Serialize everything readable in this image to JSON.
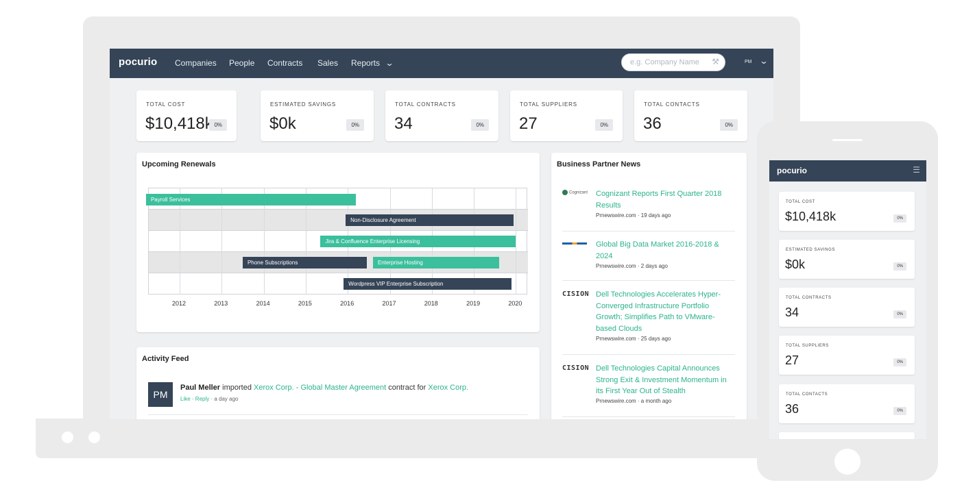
{
  "brand": "pocurio",
  "nav": {
    "items": [
      "Companies",
      "People",
      "Contracts",
      "Sales",
      "Reports"
    ],
    "search_placeholder": "e.g. Company Name",
    "user_initials": "PM"
  },
  "stats": [
    {
      "label": "TOTAL COST",
      "value": "$10,418k",
      "pct": "0%"
    },
    {
      "label": "ESTIMATED SAVINGS",
      "value": "$0k",
      "pct": "0%"
    },
    {
      "label": "TOTAL CONTRACTS",
      "value": "34",
      "pct": "0%"
    },
    {
      "label": "TOTAL SUPPLIERS",
      "value": "27",
      "pct": "0%"
    },
    {
      "label": "TOTAL CONTACTS",
      "value": "36",
      "pct": "0%"
    }
  ],
  "renewals": {
    "title": "Upcoming Renewals",
    "years": [
      "2012",
      "2013",
      "2014",
      "2015",
      "2016",
      "2017",
      "2018",
      "2019",
      "2020"
    ],
    "bars": [
      {
        "label": "Payroll Services",
        "row": 0,
        "start": 2011.2,
        "end": 2016.2,
        "color": "green"
      },
      {
        "label": "Non-Disclosure Agreement",
        "row": 1,
        "start": 2015.95,
        "end": 2019.95,
        "color": "dark"
      },
      {
        "label": "Jira & Confluence Enterprise Licensing",
        "row": 2,
        "start": 2015.35,
        "end": 2020.0,
        "color": "green"
      },
      {
        "label": "Phone Subscriptions",
        "row": 3,
        "start": 2013.5,
        "end": 2016.45,
        "color": "dark"
      },
      {
        "label": "Enterprise Hosting",
        "row": 3,
        "start": 2016.6,
        "end": 2019.6,
        "color": "green"
      },
      {
        "label": "Wordpress VIP Enterprise Subscription",
        "row": 4,
        "start": 2015.9,
        "end": 2019.9,
        "color": "dark"
      }
    ]
  },
  "activity": {
    "title": "Activity Feed",
    "avatar": "PM",
    "user": "Paul Meller",
    "action": "imported",
    "contract_link": "Xerox Corp. - Global Master Agreement",
    "middle": "contract for",
    "company_link": "Xerox Corp.",
    "like": "Like",
    "reply": "Reply",
    "time": "a day ago"
  },
  "news": {
    "title": "Business Partner News",
    "items": [
      {
        "logo": "Cognizant",
        "headline": "Cognizant Reports First Quarter 2018 Results",
        "source": "Prnewswire.com · 19 days ago"
      },
      {
        "logo": "",
        "headline": "Global Big Data Market 2016-2018 & 2024",
        "source": "Prnewswire.com · 2 days ago"
      },
      {
        "logo": "CISION",
        "headline": "Dell Technologies Accelerates Hyper-Converged Infrastructure Portfolio Growth; Simplifies Path to VMware-based Clouds",
        "source": "Prnewswire.com · 25 days ago"
      },
      {
        "logo": "CISION",
        "headline": "Dell Technologies Capital Announces Strong Exit & Investment Momentum in its First Year Out of Stealth",
        "source": "Prnewswire.com · a month ago"
      }
    ]
  },
  "icons": {
    "reports_chevron": "chevron-down-icon",
    "search_tool": "wrench-icon",
    "user_chevron": "chevron-down-icon",
    "phone_menu": "hamburger-icon"
  },
  "colors": {
    "nav": "#354457",
    "accent": "#3bbf9c",
    "link": "#2bb38c"
  }
}
